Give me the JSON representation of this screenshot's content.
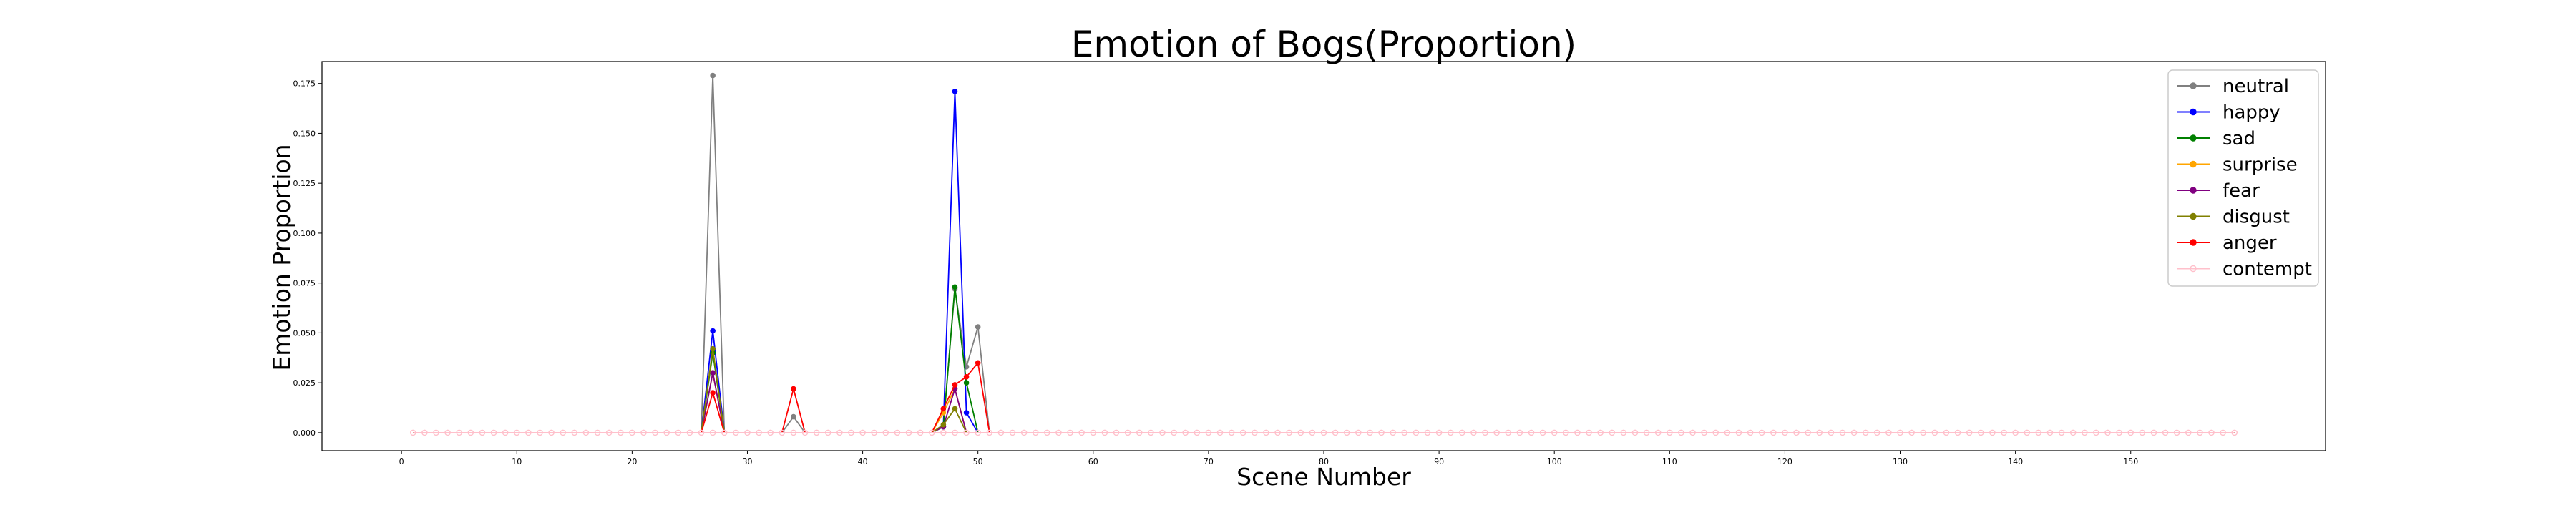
{
  "chart_data": {
    "type": "line",
    "title": "Emotion of Bogs(Proportion)",
    "xlabel": "Scene Number",
    "ylabel": "Emotion Proportion",
    "xlim": [
      -6.9,
      166.9
    ],
    "ylim": [
      -0.009,
      0.186
    ],
    "xticks": [
      0,
      10,
      20,
      30,
      40,
      50,
      60,
      70,
      80,
      90,
      100,
      110,
      120,
      130,
      140,
      150
    ],
    "yticks": [
      "0.000",
      "0.025",
      "0.050",
      "0.075",
      "0.100",
      "0.125",
      "0.150",
      "0.175"
    ],
    "x_start": 1,
    "x_end": 159,
    "grid": false,
    "legend_position": "top-right",
    "marker": "point",
    "series": [
      {
        "name": "neutral",
        "color": "#808080",
        "points": [
          [
            26,
            0
          ],
          [
            27,
            0.179
          ],
          [
            28,
            0
          ],
          [
            33,
            0
          ],
          [
            34,
            0.008
          ],
          [
            35,
            0
          ],
          [
            46,
            0
          ],
          [
            47,
            0.004
          ],
          [
            48,
            0.072
          ],
          [
            49,
            0.033
          ],
          [
            50,
            0.053
          ],
          [
            51,
            0
          ]
        ]
      },
      {
        "name": "happy",
        "color": "#0000ff",
        "points": [
          [
            26,
            0
          ],
          [
            27,
            0.051
          ],
          [
            28,
            0
          ],
          [
            46,
            0
          ],
          [
            47,
            0.003
          ],
          [
            48,
            0.171
          ],
          [
            49,
            0.01
          ],
          [
            50,
            0
          ]
        ]
      },
      {
        "name": "sad",
        "color": "#008000",
        "points": [
          [
            26,
            0
          ],
          [
            27,
            0.04
          ],
          [
            28,
            0
          ],
          [
            46,
            0
          ],
          [
            47,
            0.003
          ],
          [
            48,
            0.073
          ],
          [
            49,
            0.025
          ],
          [
            50,
            0
          ]
        ]
      },
      {
        "name": "surprise",
        "color": "#ffa500",
        "points": [
          [
            26,
            0
          ],
          [
            27,
            0.03
          ],
          [
            28,
            0
          ],
          [
            46,
            0
          ],
          [
            47,
            0.01
          ],
          [
            48,
            0.022
          ],
          [
            49,
            0
          ],
          [
            50,
            0
          ]
        ]
      },
      {
        "name": "fear",
        "color": "#800080",
        "points": [
          [
            26,
            0
          ],
          [
            27,
            0.03
          ],
          [
            28,
            0
          ],
          [
            46,
            0
          ],
          [
            47,
            0.003
          ],
          [
            48,
            0.022
          ],
          [
            49,
            0
          ],
          [
            50,
            0
          ]
        ]
      },
      {
        "name": "disgust",
        "color": "#808000",
        "points": [
          [
            26,
            0
          ],
          [
            27,
            0.042
          ],
          [
            28,
            0
          ],
          [
            33,
            0
          ],
          [
            34,
            0
          ],
          [
            35,
            0
          ],
          [
            46,
            0
          ],
          [
            47,
            0.004
          ],
          [
            48,
            0.012
          ],
          [
            49,
            0
          ],
          [
            50,
            0
          ]
        ]
      },
      {
        "name": "anger",
        "color": "#ff0000",
        "points": [
          [
            26,
            0
          ],
          [
            27,
            0.02
          ],
          [
            28,
            0
          ],
          [
            33,
            0
          ],
          [
            34,
            0.022
          ],
          [
            35,
            0
          ],
          [
            46,
            0
          ],
          [
            47,
            0.012
          ],
          [
            48,
            0.024
          ],
          [
            49,
            0.028
          ],
          [
            50,
            0.035
          ],
          [
            51,
            0
          ]
        ]
      },
      {
        "name": "contempt",
        "color": "#ffc0cb",
        "points": []
      }
    ]
  }
}
